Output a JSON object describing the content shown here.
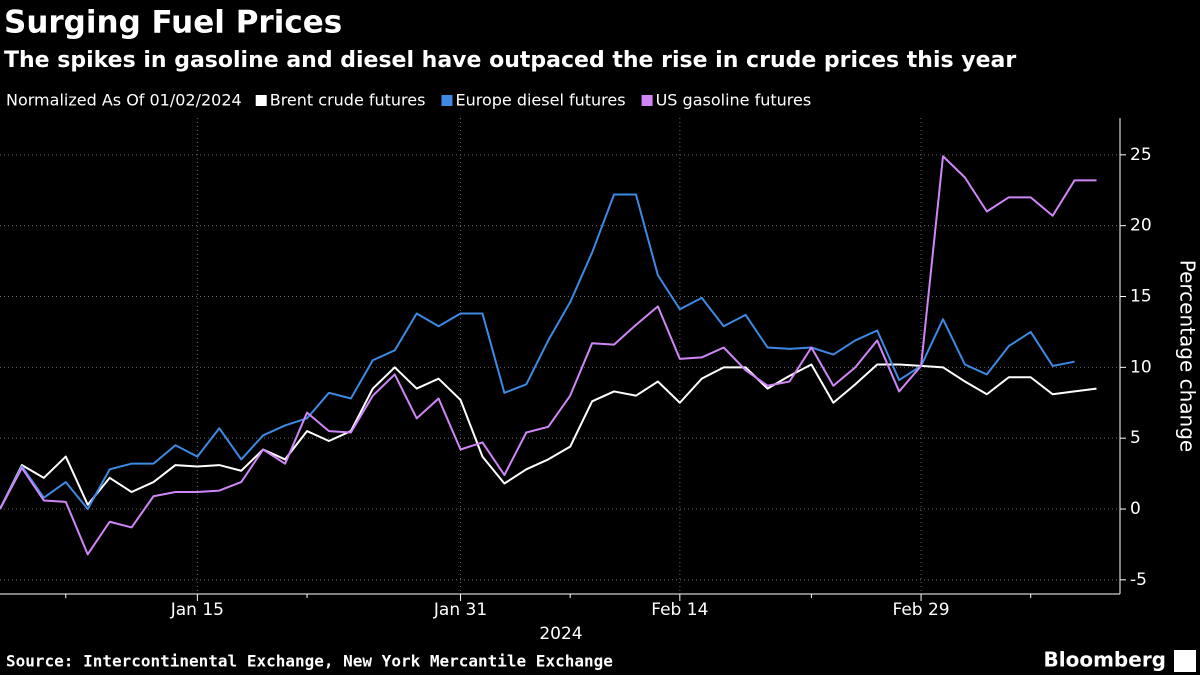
{
  "chart_data": {
    "type": "line",
    "title": "Surging Fuel Prices",
    "subtitle": "The spikes in gasoline and diesel have outpaced the rise in crude prices this year",
    "legend_title": "Normalized As Of 01/02/2024",
    "y_label": "Percentage change",
    "x_label": "2024",
    "source": "Source: Intercontinental Exchange, New York Mercantile Exchange",
    "brand": "Bloomberg",
    "x": [
      "2024-01-02",
      "2024-01-03",
      "2024-01-04",
      "2024-01-05",
      "2024-01-08",
      "2024-01-09",
      "2024-01-10",
      "2024-01-11",
      "2024-01-12",
      "2024-01-15",
      "2024-01-16",
      "2024-01-17",
      "2024-01-18",
      "2024-01-19",
      "2024-01-22",
      "2024-01-23",
      "2024-01-24",
      "2024-01-25",
      "2024-01-26",
      "2024-01-29",
      "2024-01-30",
      "2024-01-31",
      "2024-02-01",
      "2024-02-02",
      "2024-02-05",
      "2024-02-06",
      "2024-02-07",
      "2024-02-08",
      "2024-02-09",
      "2024-02-12",
      "2024-02-13",
      "2024-02-14",
      "2024-02-15",
      "2024-02-16",
      "2024-02-19",
      "2024-02-20",
      "2024-02-21",
      "2024-02-22",
      "2024-02-23",
      "2024-02-26",
      "2024-02-27",
      "2024-02-28",
      "2024-02-29",
      "2024-03-01",
      "2024-03-04",
      "2024-03-05",
      "2024-03-06",
      "2024-03-07",
      "2024-03-08",
      "2024-03-11",
      "2024-03-12"
    ],
    "series": [
      {
        "name": "Brent crude futures",
        "color": "#ffffff",
        "values": [
          0,
          3.1,
          2.2,
          3.7,
          0.3,
          2.2,
          1.2,
          1.9,
          3.1,
          3.0,
          3.1,
          2.7,
          4.2,
          3.5,
          5.5,
          4.8,
          5.5,
          8.5,
          10.0,
          8.5,
          9.2,
          7.7,
          3.7,
          1.8,
          2.8,
          3.5,
          4.4,
          7.6,
          8.3,
          8.0,
          9.0,
          7.5,
          9.2,
          10.0,
          10.0,
          8.5,
          9.4,
          10.2,
          7.5,
          8.8,
          10.2,
          10.2,
          10.1,
          10.0,
          9.0,
          8.1,
          9.3,
          9.3,
          8.1,
          8.3,
          8.5
        ]
      },
      {
        "name": "Europe diesel futures",
        "color": "#3d89e4",
        "values": [
          0,
          3.0,
          0.8,
          1.9,
          0,
          2.8,
          3.2,
          3.2,
          4.5,
          3.7,
          5.7,
          3.5,
          5.2,
          5.9,
          6.4,
          8.2,
          7.8,
          10.5,
          11.2,
          13.8,
          12.9,
          13.8,
          13.8,
          8.2,
          8.8,
          11.9,
          14.6,
          18.1,
          22.2,
          22.2,
          16.5,
          14.1,
          14.9,
          12.9,
          13.7,
          11.4,
          11.3,
          11.4,
          10.9,
          11.9,
          12.6,
          9.1,
          10.1,
          13.4,
          10.2,
          9.5,
          11.5,
          12.5,
          10.1,
          10.4,
          null
        ]
      },
      {
        "name": "US gasoline futures",
        "color": "#cf87f7",
        "values": [
          0,
          2.9,
          0.6,
          0.5,
          -3.2,
          -0.9,
          -1.3,
          0.9,
          1.2,
          1.2,
          1.3,
          1.9,
          4.2,
          3.2,
          6.8,
          5.5,
          5.4,
          8.0,
          9.5,
          6.4,
          7.8,
          4.2,
          4.7,
          2.4,
          5.4,
          5.8,
          8.0,
          11.7,
          11.6,
          13.0,
          14.3,
          10.6,
          10.7,
          11.4,
          9.8,
          8.7,
          9.0,
          11.4,
          8.7,
          10.0,
          11.9,
          8.3,
          10.1,
          24.9,
          23.4,
          21.0,
          22.0,
          22.0,
          20.7,
          23.2,
          23.2
        ]
      }
    ],
    "ylim": [
      -6,
      27.6
    ],
    "yticks": [
      -5,
      0,
      5,
      10,
      15,
      20,
      25
    ],
    "xticks": [
      {
        "value": "2024-01-15",
        "label": "Jan 15"
      },
      {
        "value": "2024-01-31",
        "label": "Jan 31"
      },
      {
        "value": "2024-02-14",
        "label": "Feb 14"
      },
      {
        "value": "2024-02-29",
        "label": "Feb 29"
      }
    ],
    "xticks_minor": [
      "2024-01-05",
      "2024-01-22",
      "2024-02-07",
      "2024-02-22",
      "2024-03-07"
    ],
    "grid": true
  }
}
